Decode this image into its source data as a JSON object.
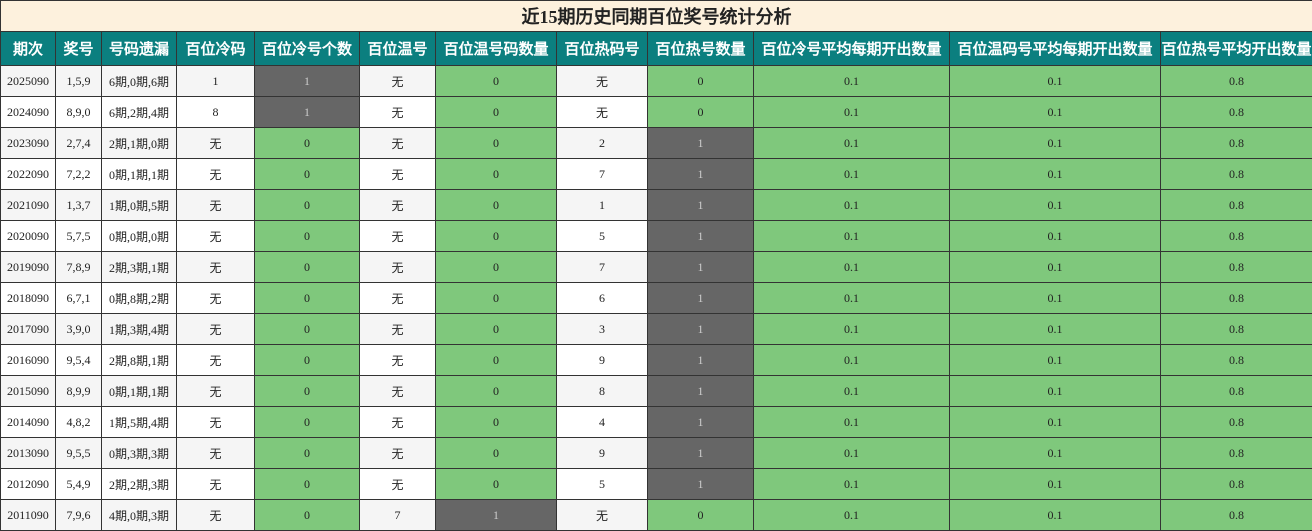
{
  "title": "近15期历史同期百位奖号统计分析",
  "table": {
    "headers": [
      "期次",
      "奖号",
      "号码遗漏",
      "百位冷码",
      "百位冷号个数",
      "百位温号",
      "百位温号码数量",
      "百位热码号",
      "百位热号数量",
      "百位冷号平均每期开出数量",
      "百位温码号平均每期开出数量",
      "百位热号平均开出数量"
    ],
    "rows": [
      [
        "2025090",
        "1,5,9",
        "6期,0期,6期",
        "1",
        1,
        "无",
        0,
        "无",
        0,
        0.1,
        0.1,
        0.8
      ],
      [
        "2024090",
        "8,9,0",
        "6期,2期,4期",
        "8",
        1,
        "无",
        0,
        "无",
        0,
        0.1,
        0.1,
        0.8
      ],
      [
        "2023090",
        "2,7,4",
        "2期,1期,0期",
        "无",
        0,
        "无",
        0,
        "2",
        1,
        0.1,
        0.1,
        0.8
      ],
      [
        "2022090",
        "7,2,2",
        "0期,1期,1期",
        "无",
        0,
        "无",
        0,
        "7",
        1,
        0.1,
        0.1,
        0.8
      ],
      [
        "2021090",
        "1,3,7",
        "1期,0期,5期",
        "无",
        0,
        "无",
        0,
        "1",
        1,
        0.1,
        0.1,
        0.8
      ],
      [
        "2020090",
        "5,7,5",
        "0期,0期,0期",
        "无",
        0,
        "无",
        0,
        "5",
        1,
        0.1,
        0.1,
        0.8
      ],
      [
        "2019090",
        "7,8,9",
        "2期,3期,1期",
        "无",
        0,
        "无",
        0,
        "7",
        1,
        0.1,
        0.1,
        0.8
      ],
      [
        "2018090",
        "6,7,1",
        "0期,8期,2期",
        "无",
        0,
        "无",
        0,
        "6",
        1,
        0.1,
        0.1,
        0.8
      ],
      [
        "2017090",
        "3,9,0",
        "1期,3期,4期",
        "无",
        0,
        "无",
        0,
        "3",
        1,
        0.1,
        0.1,
        0.8
      ],
      [
        "2016090",
        "9,5,4",
        "2期,8期,1期",
        "无",
        0,
        "无",
        0,
        "9",
        1,
        0.1,
        0.1,
        0.8
      ],
      [
        "2015090",
        "8,9,9",
        "0期,1期,1期",
        "无",
        0,
        "无",
        0,
        "8",
        1,
        0.1,
        0.1,
        0.8
      ],
      [
        "2014090",
        "4,8,2",
        "1期,5期,4期",
        "无",
        0,
        "无",
        0,
        "4",
        1,
        0.1,
        0.1,
        0.8
      ],
      [
        "2013090",
        "9,5,5",
        "0期,3期,3期",
        "无",
        0,
        "无",
        0,
        "9",
        1,
        0.1,
        0.1,
        0.8
      ],
      [
        "2012090",
        "5,4,9",
        "2期,2期,3期",
        "无",
        0,
        "无",
        0,
        "5",
        1,
        0.1,
        0.1,
        0.8
      ],
      [
        "2011090",
        "7,9,6",
        "4期,0期,3期",
        "无",
        0,
        "7",
        1,
        "无",
        0,
        0.1,
        0.1,
        0.8
      ]
    ]
  }
}
